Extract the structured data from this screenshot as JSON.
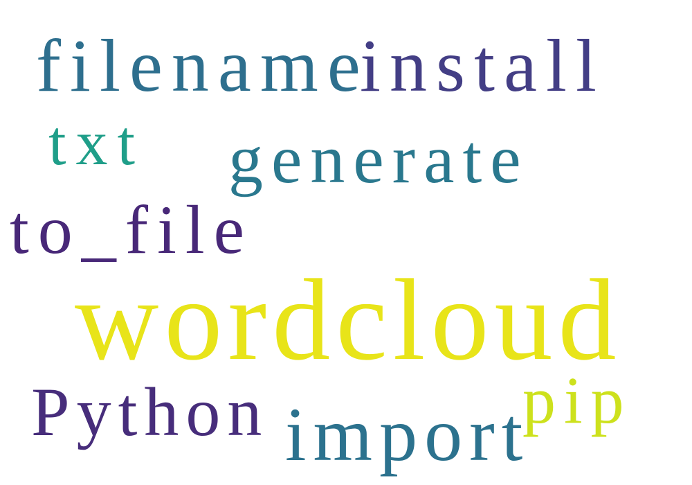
{
  "words": [
    {
      "text": "filename",
      "color": "#2e6f8e"
    },
    {
      "text": "install",
      "color": "#433e85"
    },
    {
      "text": "txt",
      "color": "#1f9e89"
    },
    {
      "text": "generate",
      "color": "#2a788e"
    },
    {
      "text": "to_file",
      "color": "#482878"
    },
    {
      "text": "wordcloud",
      "color": "#e8e419"
    },
    {
      "text": "Python",
      "color": "#472d7b"
    },
    {
      "text": "import",
      "color": "#2c728e"
    },
    {
      "text": "pip",
      "color": "#cde11d"
    }
  ]
}
